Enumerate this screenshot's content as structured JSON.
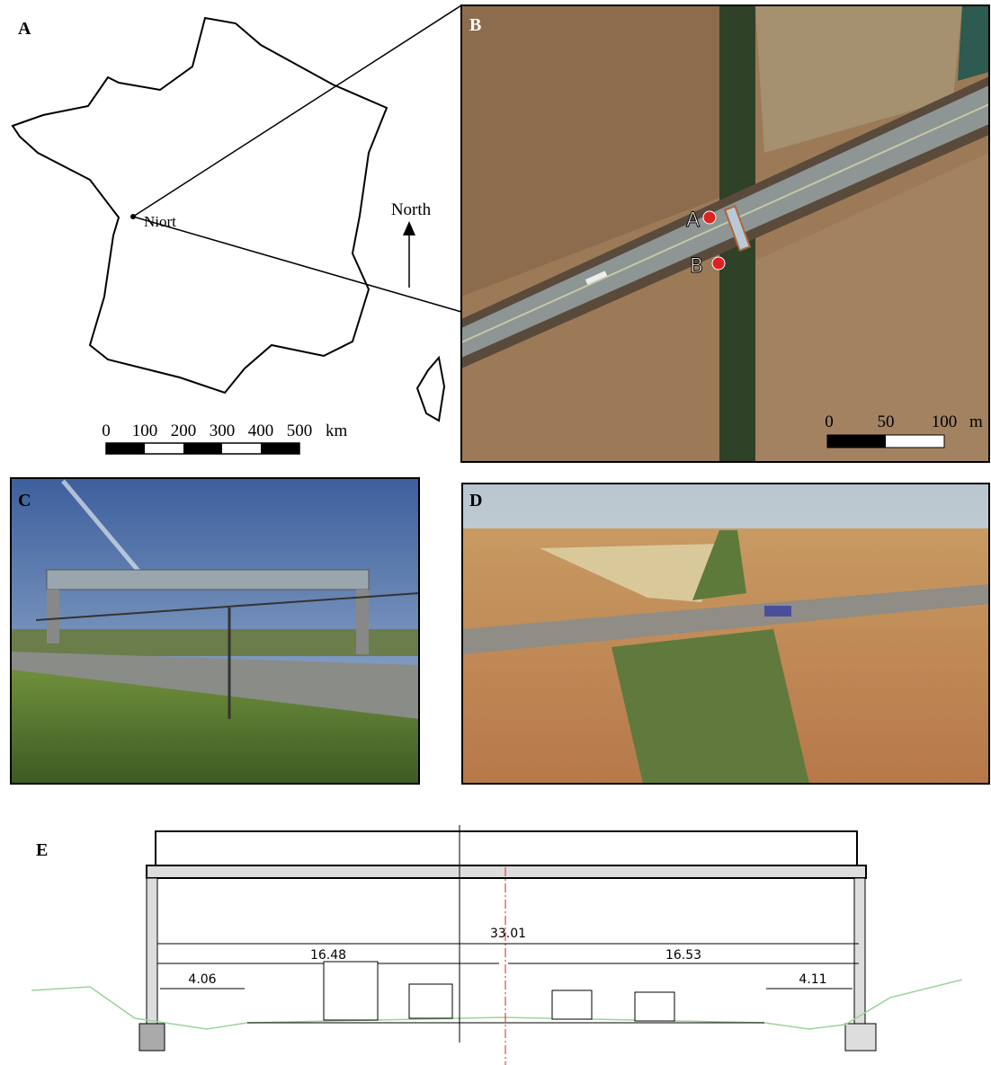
{
  "panels": {
    "a": {
      "label": "A",
      "place": "Niort",
      "north": "North",
      "scale_labels": [
        "0",
        "100",
        "200",
        "300",
        "400",
        "500"
      ],
      "scale_unit": "km"
    },
    "b": {
      "label": "B",
      "site_a": "A",
      "site_b": "B",
      "scale_labels": [
        "0",
        "50",
        "100"
      ],
      "scale_unit": "m"
    },
    "c": {
      "label": "C"
    },
    "d": {
      "label": "D"
    },
    "e": {
      "label": "E",
      "total_width": "33.01",
      "left_width": "16.48",
      "right_width": "16.53",
      "left_shoulder": "4.06",
      "right_shoulder": "4.11"
    }
  }
}
